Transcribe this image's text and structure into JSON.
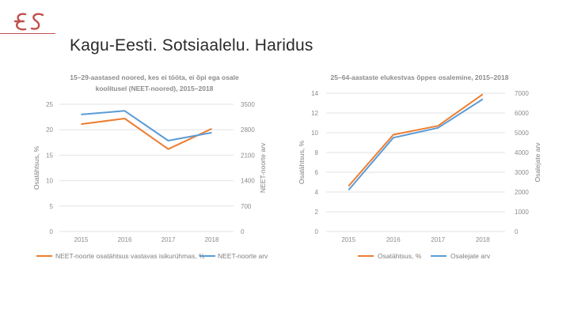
{
  "header": {
    "logo_text": "ES",
    "title": "Kagu-Eesti. Sotsiaalelu. Haridus"
  },
  "colors": {
    "orange": "#ed7d31",
    "blue": "#5b9bd5",
    "grid": "#e3e3e3",
    "brand": "#c0504d"
  },
  "chart_data": [
    {
      "type": "line",
      "title_lines": [
        "15–29-aastased noored, kes ei tööta, ei õpi ega osale",
        "koolitusel (NEET-noored), 2015–2018"
      ],
      "categories": [
        "2015",
        "2016",
        "2017",
        "2018"
      ],
      "ylabel": "Osatähtsus, %",
      "y2label": "NEET-noorte arv",
      "ylim": [
        0,
        25
      ],
      "y2lim": [
        0,
        3500
      ],
      "yticks": [
        "0",
        "5",
        "10",
        "15",
        "20",
        "25"
      ],
      "y2ticks": [
        "0",
        "700",
        "1400",
        "2100",
        "2800",
        "3500"
      ],
      "series": [
        {
          "name": "NEET-noorte osatähtsus vastavas isikurühmas, %",
          "axis": "left",
          "color": "#ed7d31",
          "values": [
            21.1,
            22.2,
            16.2,
            20.2
          ]
        },
        {
          "name": "NEET-noorte arv",
          "axis": "right",
          "color": "#5b9bd5",
          "values": [
            3220,
            3320,
            2500,
            2720
          ]
        }
      ]
    },
    {
      "type": "line",
      "title_lines": [
        "25–64-aastaste elukestvas õppes osalemine, 2015–2018"
      ],
      "categories": [
        "2015",
        "2016",
        "2017",
        "2018"
      ],
      "ylabel": "Osatähtsus, %",
      "y2label": "Osalejate arv",
      "ylim": [
        0,
        14
      ],
      "y2lim": [
        0,
        7000
      ],
      "yticks": [
        "0",
        "2",
        "4",
        "6",
        "8",
        "10",
        "12",
        "14"
      ],
      "y2ticks": [
        "0",
        "1000",
        "2000",
        "3000",
        "4000",
        "5000",
        "6000",
        "7000"
      ],
      "series": [
        {
          "name": "Osatähtsus, %",
          "axis": "left",
          "color": "#ed7d31",
          "values": [
            4.6,
            9.8,
            10.7,
            13.9
          ]
        },
        {
          "name": "Osalejate arv",
          "axis": "right",
          "color": "#5b9bd5",
          "values": [
            2100,
            4750,
            5250,
            6700
          ]
        }
      ]
    }
  ]
}
